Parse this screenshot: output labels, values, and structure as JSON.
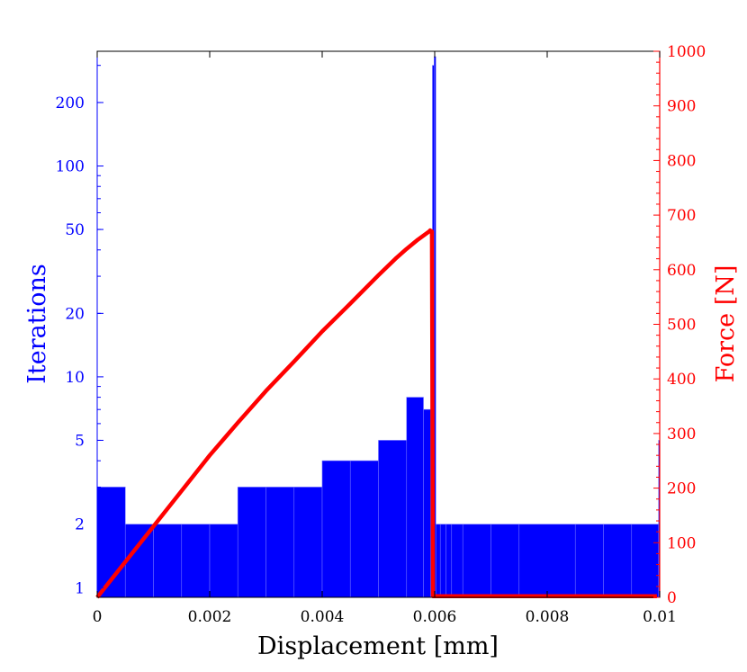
{
  "chart_data": {
    "type": "bar+line",
    "title": "",
    "xlabel": "Displacement [mm]",
    "ylabel_left": "Iterations",
    "ylabel_right": "Force [N]",
    "xlim": [
      0,
      0.01
    ],
    "ylim_left": [
      0.9,
      350
    ],
    "ylim_right": [
      0,
      1000
    ],
    "left_scale": "log",
    "x_ticks": [
      "0",
      "0.002",
      "0.004",
      "0.006",
      "0.008",
      "0.01"
    ],
    "left_ticks": [
      "1",
      "2",
      "5",
      "10",
      "20",
      "50",
      "100",
      "200"
    ],
    "right_ticks": [
      "0",
      "100",
      "200",
      "300",
      "400",
      "500",
      "600",
      "700",
      "800",
      "900",
      "1000"
    ],
    "colors": {
      "iterations": "#0000ff",
      "force": "#ff0000",
      "axes": "#000000"
    },
    "iterations_bars": [
      {
        "x0": 0.0,
        "x1": 0.0005,
        "value": 3
      },
      {
        "x0": 0.0005,
        "x1": 0.001,
        "value": 2
      },
      {
        "x0": 0.001,
        "x1": 0.0015,
        "value": 2
      },
      {
        "x0": 0.0015,
        "x1": 0.002,
        "value": 2
      },
      {
        "x0": 0.002,
        "x1": 0.0025,
        "value": 2
      },
      {
        "x0": 0.0025,
        "x1": 0.003,
        "value": 3
      },
      {
        "x0": 0.003,
        "x1": 0.0035,
        "value": 3
      },
      {
        "x0": 0.0035,
        "x1": 0.004,
        "value": 3
      },
      {
        "x0": 0.004,
        "x1": 0.0045,
        "value": 4
      },
      {
        "x0": 0.0045,
        "x1": 0.005,
        "value": 4
      },
      {
        "x0": 0.005,
        "x1": 0.0055,
        "value": 5
      },
      {
        "x0": 0.0055,
        "x1": 0.0058,
        "value": 8
      },
      {
        "x0": 0.0058,
        "x1": 0.00593,
        "value": 7
      },
      {
        "x0": 0.00593,
        "x1": 0.00596,
        "value": 18
      },
      {
        "x0": 0.00596,
        "x1": 0.00599,
        "value": 300
      },
      {
        "x0": 0.00599,
        "x1": 0.00602,
        "value": 330
      },
      {
        "x0": 0.00602,
        "x1": 0.0061,
        "value": 2
      },
      {
        "x0": 0.0061,
        "x1": 0.0062,
        "value": 2
      },
      {
        "x0": 0.0062,
        "x1": 0.0063,
        "value": 2
      },
      {
        "x0": 0.0063,
        "x1": 0.0065,
        "value": 2
      },
      {
        "x0": 0.0065,
        "x1": 0.007,
        "value": 2
      },
      {
        "x0": 0.007,
        "x1": 0.0075,
        "value": 2
      },
      {
        "x0": 0.0075,
        "x1": 0.0085,
        "value": 2
      },
      {
        "x0": 0.0085,
        "x1": 0.009,
        "value": 2
      },
      {
        "x0": 0.009,
        "x1": 0.0095,
        "value": 2
      },
      {
        "x0": 0.0095,
        "x1": 0.00998,
        "value": 2
      },
      {
        "x0": 0.00998,
        "x1": 0.01,
        "value": 5
      }
    ],
    "force_curve": {
      "x": [
        0,
        0.0005,
        0.001,
        0.0015,
        0.002,
        0.0025,
        0.003,
        0.0035,
        0.004,
        0.0045,
        0.005,
        0.0053,
        0.0055,
        0.0057,
        0.0059,
        0.00592,
        0.00595,
        0.00597,
        0.0062,
        0.007,
        0.008,
        0.009,
        0.00995
      ],
      "y": [
        0,
        65,
        130,
        195,
        260,
        320,
        378,
        432,
        487,
        538,
        590,
        620,
        638,
        655,
        670,
        672,
        670,
        2,
        2,
        2,
        2,
        2,
        2
      ]
    }
  }
}
